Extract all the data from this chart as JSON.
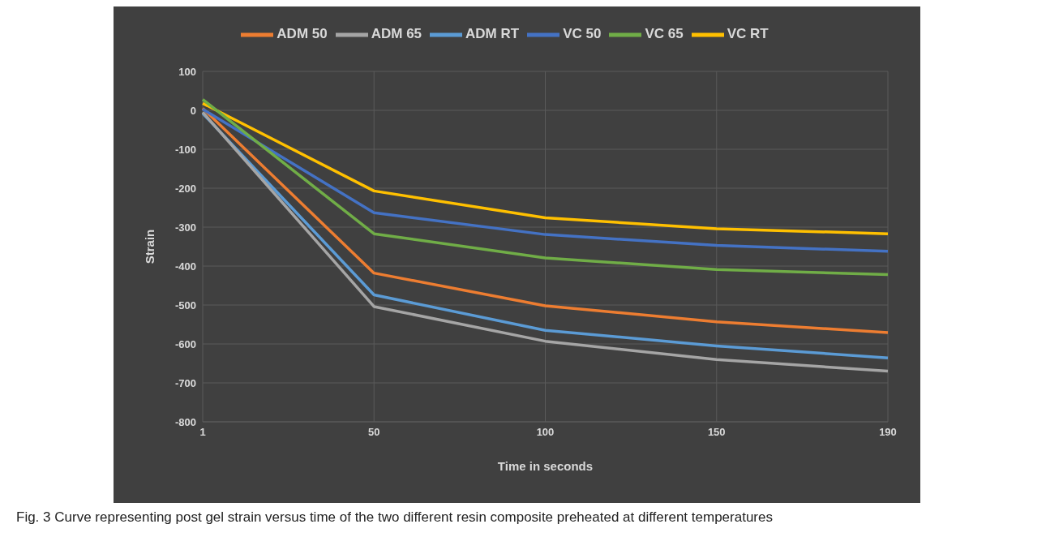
{
  "chart_data": {
    "type": "line",
    "xlabel": "Time in seconds",
    "ylabel": "Strain",
    "categories": [
      "1",
      "50",
      "100",
      "150",
      "190"
    ],
    "series": [
      {
        "name": "ADM RT",
        "color": "#5b9bd5",
        "values": [
          -8,
          -474,
          -565,
          -605,
          -636
        ]
      },
      {
        "name": "ADM 50",
        "color": "#ed7d31",
        "values": [
          5,
          -418,
          -502,
          -543,
          -571
        ]
      },
      {
        "name": "ADM 65",
        "color": "#a5a5a5",
        "values": [
          -5,
          -504,
          -593,
          -640,
          -670
        ]
      },
      {
        "name": "VC RT",
        "color": "#ffc000",
        "values": [
          18,
          -207,
          -276,
          -304,
          -317
        ]
      },
      {
        "name": "VC 50",
        "color": "#4472c4",
        "values": [
          3,
          -263,
          -319,
          -347,
          -362
        ]
      },
      {
        "name": "VC 65",
        "color": "#70ad47",
        "values": [
          28,
          -317,
          -379,
          -409,
          -422
        ]
      }
    ],
    "ylim": [
      -800,
      100
    ],
    "yticks": [
      -800,
      -700,
      -600,
      -500,
      -400,
      -300,
      -200,
      -100,
      0,
      100
    ],
    "grid": true,
    "legend": "top",
    "marker": "none",
    "line_style": "solid",
    "annotations": [
      "Fig. 3  Curve representing post gel strain versus time of the two different resin composite preheated at different temperatures"
    ]
  }
}
